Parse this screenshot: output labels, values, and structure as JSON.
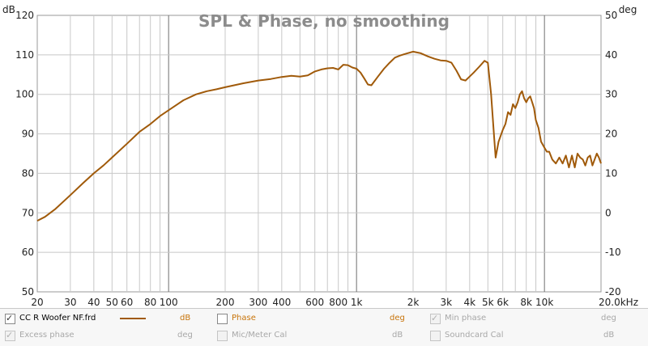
{
  "chart_data": {
    "type": "line",
    "title": "SPL & Phase, no smoothing",
    "x_scale": "log",
    "xlim": [
      20,
      20000
    ],
    "ylim": [
      50,
      120
    ],
    "y2lim": [
      -20,
      50
    ],
    "y_unit": "dB",
    "y2_unit": "deg",
    "x_ticks": [
      20,
      30,
      40,
      50,
      60,
      80,
      100,
      200,
      300,
      400,
      600,
      800,
      1000,
      2000,
      3000,
      4000,
      5000,
      6000,
      8000,
      10000,
      20000
    ],
    "x_tick_labels": [
      "20",
      "30",
      "40",
      "50",
      "60",
      "80",
      "100",
      "200",
      "300",
      "400",
      "600",
      "800",
      "1k",
      "2k",
      "3k",
      "4k",
      "5k",
      "6k",
      "8k",
      "10k",
      "20.0kHz"
    ],
    "y_ticks": [
      50,
      60,
      70,
      80,
      90,
      100,
      110,
      120
    ],
    "y_tick_labels": [
      "50",
      "60",
      "70",
      "80",
      "90",
      "100",
      "110",
      "120"
    ],
    "y2_ticks": [
      -20,
      -10,
      0,
      10,
      20,
      30,
      40,
      50
    ],
    "y2_tick_labels": [
      "-20",
      "-10",
      "0",
      "10",
      "20",
      "30",
      "40",
      "50"
    ],
    "grid": true,
    "series": [
      {
        "name": "CC R Woofer NF.frd",
        "color": "#a05a0a",
        "x": [
          20,
          22,
          25,
          30,
          35,
          40,
          45,
          50,
          60,
          70,
          80,
          90,
          100,
          120,
          140,
          160,
          180,
          200,
          250,
          300,
          350,
          400,
          450,
          500,
          550,
          600,
          650,
          700,
          750,
          800,
          850,
          900,
          950,
          1000,
          1050,
          1100,
          1150,
          1200,
          1300,
          1400,
          1500,
          1600,
          1700,
          1800,
          2000,
          2200,
          2400,
          2600,
          2800,
          3000,
          3200,
          3400,
          3600,
          3800,
          4000,
          4200,
          4500,
          4800,
          5000,
          5200,
          5400,
          5500,
          5700,
          6000,
          6200,
          6400,
          6600,
          6800,
          7000,
          7200,
          7400,
          7600,
          7800,
          8000,
          8200,
          8400,
          8600,
          8800,
          9000,
          9300,
          9600,
          10000,
          10300,
          10600,
          11000,
          11500,
          12000,
          12500,
          13000,
          13500,
          14000,
          14500,
          15000,
          15500,
          16000,
          16500,
          17000,
          17500,
          18000,
          18500,
          19000,
          19500,
          20000
        ],
        "values": [
          68,
          69,
          71,
          74.5,
          77.5,
          80,
          82,
          84,
          87.5,
          90.5,
          92.5,
          94.5,
          96,
          98.5,
          100,
          100.8,
          101.3,
          101.8,
          102.8,
          103.5,
          103.9,
          104.4,
          104.7,
          104.5,
          104.8,
          105.8,
          106.3,
          106.6,
          106.7,
          106.3,
          107.5,
          107.4,
          106.8,
          106.5,
          105.5,
          104,
          102.5,
          102.3,
          104.5,
          106.5,
          108,
          109.3,
          109.8,
          110.2,
          110.8,
          110.4,
          109.6,
          109,
          108.6,
          108.5,
          108,
          106,
          103.8,
          103.5,
          104.5,
          105.5,
          107,
          108.5,
          108,
          100,
          89,
          84,
          88,
          91,
          92.5,
          95.5,
          94.8,
          97.5,
          96.5,
          98,
          100,
          100.8,
          99,
          98,
          99,
          99.5,
          98,
          96.5,
          93.5,
          91.5,
          88,
          86.5,
          85.5,
          85.5,
          83.5,
          82.5,
          84,
          82.5,
          84.5,
          81.5,
          84.5,
          81.5,
          85,
          84,
          83.5,
          82,
          84,
          84.5,
          82,
          83.5,
          85,
          84,
          82.5
        ]
      }
    ],
    "legend": {
      "placement": "bottom",
      "items": [
        {
          "label": "CC R Woofer NF.frd",
          "checked": true,
          "enabled": true,
          "unit": "dB",
          "line_color": "#a05a0a"
        },
        {
          "label": "Phase",
          "checked": false,
          "enabled": true,
          "unit": "deg"
        },
        {
          "label": "Min phase",
          "checked": true,
          "enabled": false,
          "unit": "deg"
        },
        {
          "label": "Excess phase",
          "checked": true,
          "enabled": false,
          "unit": "deg"
        },
        {
          "label": "Mic/Meter Cal",
          "checked": false,
          "enabled": false,
          "unit": "dB"
        },
        {
          "label": "Soundcard Cal",
          "checked": false,
          "enabled": false,
          "unit": "dB"
        }
      ]
    }
  },
  "colors": {
    "curve": "#a05a0a",
    "phase_label": "#c8740a",
    "title": "#8c8c8c",
    "grid_minor": "#c8c8c8",
    "grid_major": "#707070",
    "disabled_text": "#a8a8a8"
  },
  "labels": {
    "left_unit": "dB",
    "right_unit": "deg"
  }
}
